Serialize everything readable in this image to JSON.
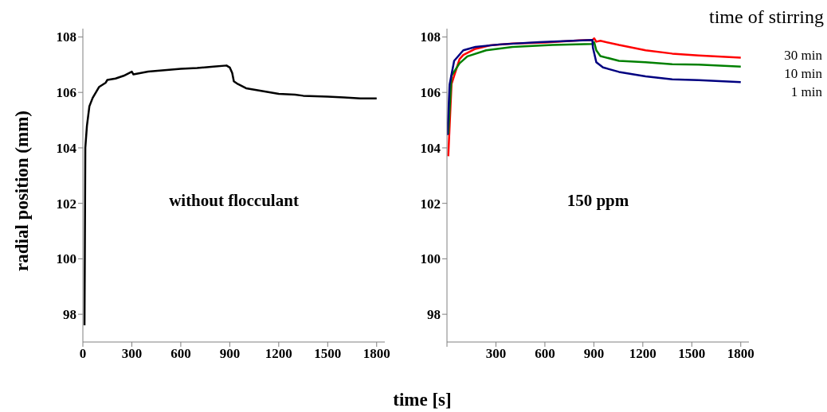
{
  "chart_data": [
    {
      "type": "line",
      "ylabel": "radial position (mm)",
      "annotations": [
        "without flocculant"
      ],
      "xlim": [
        0,
        1850
      ],
      "ylim": [
        97,
        108.3
      ],
      "xticks": [
        0,
        300,
        600,
        900,
        1200,
        1500,
        1800
      ],
      "yticks": [
        98,
        100,
        102,
        104,
        106,
        108
      ],
      "series": [
        {
          "color": "#000000",
          "x": [
            10,
            12,
            15,
            25,
            40,
            60,
            100,
            140,
            150,
            200,
            250,
            300,
            310,
            400,
            500,
            600,
            700,
            800,
            880,
            900,
            915,
            925,
            950,
            1000,
            1100,
            1200,
            1300,
            1350,
            1500,
            1600,
            1700,
            1800
          ],
          "values": [
            97.6,
            100,
            104,
            104.8,
            105.5,
            105.8,
            106.2,
            106.35,
            106.45,
            106.5,
            106.6,
            106.75,
            106.65,
            106.75,
            106.8,
            106.85,
            106.88,
            106.93,
            106.97,
            106.9,
            106.7,
            106.4,
            106.3,
            106.15,
            106.05,
            105.95,
            105.92,
            105.88,
            105.85,
            105.82,
            105.78,
            105.78
          ]
        }
      ]
    },
    {
      "type": "line",
      "xlabel": "time [s]",
      "legend_title": "time of stirring",
      "annotations": [
        "150 ppm"
      ],
      "xlim": [
        0,
        1850
      ],
      "ylim": [
        97,
        108.3
      ],
      "xticks": [
        {
          "value": 0,
          "label": null
        },
        300,
        600,
        900,
        1200,
        1500,
        1800
      ],
      "yticks": [
        98,
        100,
        102,
        104,
        106,
        108
      ],
      "series": [
        {
          "name": "30 min",
          "color": "#ff0000",
          "x": [
            8,
            28,
            77,
            100,
            174,
            264,
            402,
            598,
            811,
            891,
            902,
            915,
            940,
            1054,
            1217,
            1380,
            1542,
            1800
          ],
          "values": [
            103.7,
            106.3,
            107.2,
            107.35,
            107.57,
            107.7,
            107.76,
            107.8,
            107.88,
            107.89,
            107.95,
            107.83,
            107.86,
            107.71,
            107.52,
            107.4,
            107.33,
            107.25
          ]
        },
        {
          "name": "10 min",
          "color": "#008000",
          "x": [
            8,
            28,
            77,
            125,
            240,
            402,
            647,
            891,
            902,
            915,
            940,
            1054,
            1217,
            1380,
            1542,
            1800
          ],
          "values": [
            104.5,
            106.6,
            107.05,
            107.3,
            107.52,
            107.64,
            107.71,
            107.75,
            107.81,
            107.52,
            107.31,
            107.14,
            107.09,
            107.02,
            107,
            106.93
          ]
        },
        {
          "name": "1 min",
          "color": "#000080",
          "x": [
            3,
            16,
            44,
            100,
            174,
            321,
            565,
            891,
            894,
            915,
            956,
            1054,
            1217,
            1380,
            1542,
            1800
          ],
          "values": [
            104.46,
            106.28,
            107.14,
            107.52,
            107.64,
            107.73,
            107.81,
            107.89,
            107.62,
            107.09,
            106.9,
            106.74,
            106.58,
            106.47,
            106.44,
            106.37
          ]
        }
      ]
    }
  ]
}
